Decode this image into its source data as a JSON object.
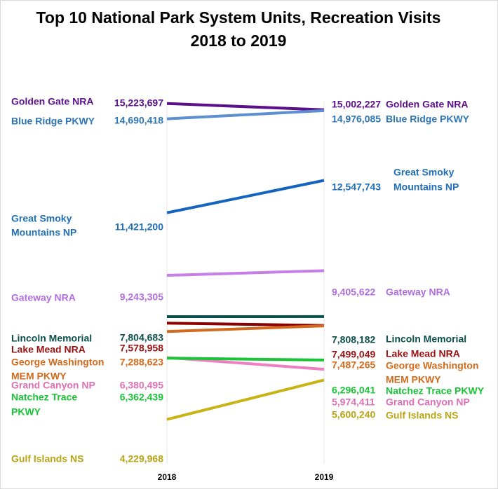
{
  "chart_data": {
    "type": "line",
    "title": "Top 10 National Park System Units, Recreation Visits",
    "subtitle": "2018 to 2019",
    "xlabel": "",
    "ylabel": "",
    "categories": [
      "2018",
      "2019"
    ],
    "ylim": [
      4000000,
      16000000
    ],
    "grid": false,
    "legend": "none",
    "series": [
      {
        "name": "Golden Gate NRA",
        "values": [
          15223697,
          15002227
        ],
        "labels": [
          "15,223,697",
          "15,002,227"
        ],
        "color": "#5b0f8a",
        "left_name": [
          "Golden Gate NRA"
        ],
        "right_name": [
          "Golden Gate NRA"
        ]
      },
      {
        "name": "Blue Ridge PKWY",
        "values": [
          14690418,
          14976085
        ],
        "labels": [
          "14,690,418",
          "14,976,085"
        ],
        "color": "#5b8fcf",
        "left_name": [
          "Blue Ridge PKWY"
        ],
        "right_name": [
          "Blue Ridge PKWY"
        ],
        "label_color": "#2e75b6"
      },
      {
        "name": "Great Smoky Mountains NP",
        "values": [
          11421200,
          12547743
        ],
        "labels": [
          "11,421,200",
          "12,547,743"
        ],
        "color": "#1565c0",
        "label_color": "#1f6fb8",
        "left_name": [
          "Great Smoky",
          "Mountains NP"
        ],
        "right_name": [
          "Great Smoky",
          "Mountains NP"
        ]
      },
      {
        "name": "Gateway NRA",
        "values": [
          9243305,
          9405622
        ],
        "labels": [
          "9,243,305",
          "9,405,622"
        ],
        "color": "#c77fe8",
        "label_color": "#b26ee0",
        "left_name": [
          "Gateway NRA"
        ],
        "right_name": [
          "Gateway NRA"
        ]
      },
      {
        "name": "Lincoln Memorial",
        "values": [
          7804683,
          7808182
        ],
        "labels": [
          "7,804,683",
          "7,808,182"
        ],
        "color": "#0b4f4a",
        "left_name": [
          "Lincoln Memorial"
        ],
        "right_name": [
          "Lincoln Memorial"
        ]
      },
      {
        "name": "Lake Mead NRA",
        "values": [
          7578958,
          7499049
        ],
        "labels": [
          "7,578,958",
          "7,499,049"
        ],
        "color": "#8b0000",
        "label_color": "#9b1010",
        "left_name": [
          "Lake Mead NRA"
        ],
        "right_name": [
          "Lake Mead NRA"
        ]
      },
      {
        "name": "George Washington MEM PKWY",
        "values": [
          7288623,
          7487265
        ],
        "labels": [
          "7,288,623",
          "7,487,265"
        ],
        "color": "#d2691e",
        "label_color": "#d46a1c",
        "left_name": [
          "George Washington",
          "MEM PKWY"
        ],
        "right_name": [
          "George Washington",
          "MEM PKWY"
        ]
      },
      {
        "name": "Grand Canyon NP",
        "values": [
          6380495,
          5974411
        ],
        "labels": [
          "6,380,495",
          "5,974,411"
        ],
        "color": "#ee7fc0",
        "label_color": "#e06fb5",
        "left_name": [
          "Grand Canyon NP"
        ],
        "right_name": [
          "Grand Canyon NP"
        ]
      },
      {
        "name": "Natchez Trace PKWY",
        "values": [
          6362439,
          6296041
        ],
        "labels": [
          "6,362,439",
          "6,296,041"
        ],
        "color": "#19c437",
        "label_color": "#19c437",
        "left_name": [
          "Natchez Trace",
          "PKWY"
        ],
        "right_name": [
          "Natchez Trace PKWY"
        ]
      },
      {
        "name": "Gulf Islands NS",
        "values": [
          4229968,
          5600240
        ],
        "labels": [
          "4,229,968",
          "5,600,240"
        ],
        "color": "#c9b418",
        "label_color": "#b8a414",
        "left_name": [
          "Gulf Islands NS"
        ],
        "right_name": [
          "Gulf Islands NS"
        ]
      }
    ]
  }
}
